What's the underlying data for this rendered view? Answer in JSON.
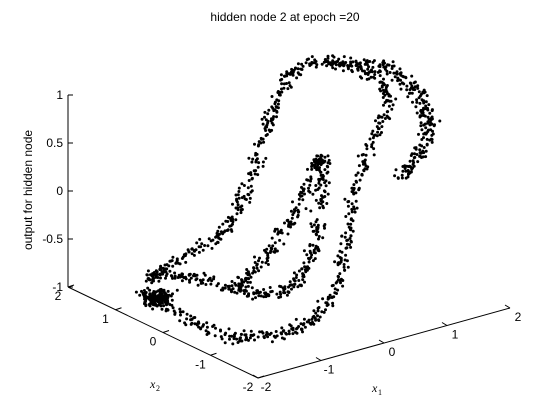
{
  "chart_data": {
    "type": "scatter",
    "title": "hidden node 2 at epoch =20",
    "xlabel": "x",
    "xlabel_sub": "1",
    "ylabel": "x",
    "ylabel_sub": "2",
    "zlabel": "output for hidden node",
    "xlim": [
      -2,
      2
    ],
    "ylim": [
      -2,
      2
    ],
    "zlim": [
      -1,
      1
    ],
    "xticks": [
      -2,
      -1,
      0,
      1,
      2
    ],
    "yticks": [
      -2,
      -1,
      0,
      1,
      2
    ],
    "zticks": [
      -1,
      -0.5,
      0,
      0.5,
      1
    ],
    "xtick_labels": [
      "-2",
      "-1",
      "0",
      "1",
      "2"
    ],
    "ytick_labels": [
      "-2",
      "-1",
      "0",
      "1",
      "2"
    ],
    "ztick_labels": [
      "-1",
      "-0.5",
      "0",
      "0.5",
      "1"
    ],
    "grid": false,
    "marker": "dot",
    "marker_color": "#000000",
    "description_of_data": "Approx. 1500 points sampled along a two-arm spiral in the x1-x2 plane; output rises from -1 on the outer arm near x2=+2 to +1 on the upper ridge, with an inner loop near 0 to -1."
  }
}
